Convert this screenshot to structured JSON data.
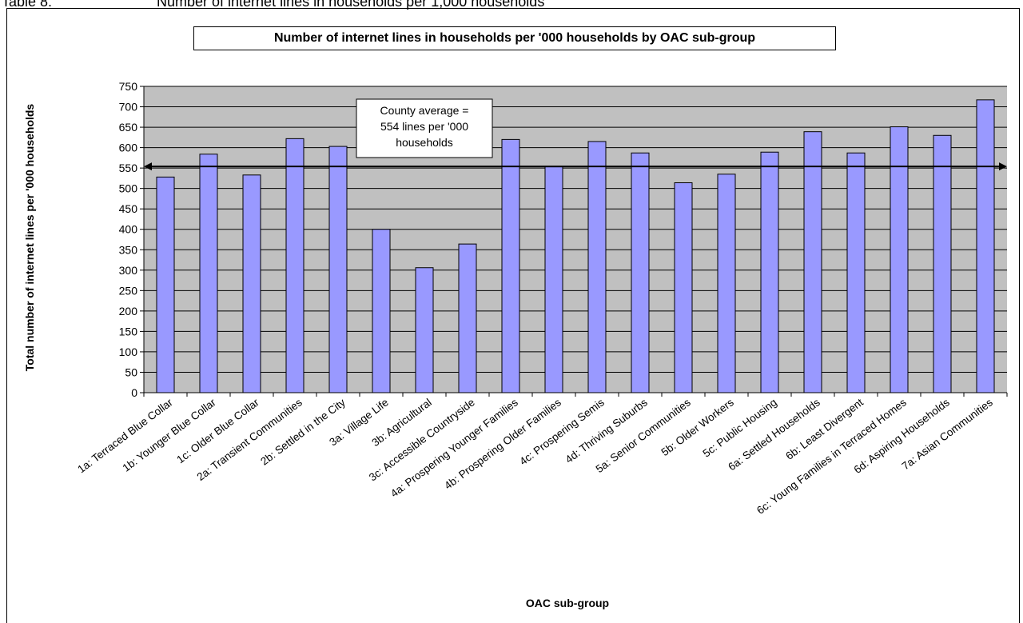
{
  "caption": {
    "number": "Table 8:",
    "text": "Number of internet lines in households per 1,000 households"
  },
  "colors": {
    "plot_background": "#c0c0c0",
    "bar_fill": "#9999ff",
    "bar_stroke": "#000000",
    "gridline": "#000000"
  },
  "chart_data": {
    "type": "bar",
    "title": "Number of internet lines in households per '000 households by OAC sub-group",
    "xlabel": "OAC sub-group",
    "ylabel": "Total number of internet lines per '000 households",
    "ylim": [
      0,
      750
    ],
    "yticks": [
      0,
      50,
      100,
      150,
      200,
      250,
      300,
      350,
      400,
      450,
      500,
      550,
      600,
      650,
      700,
      750
    ],
    "grid": true,
    "categories": [
      "1a: Terraced Blue Collar",
      "1b: Younger Blue Collar",
      "1c: Older Blue Collar",
      "2a: Transient Communities",
      "2b: Settled in the City",
      "3a: Village Life",
      "3b: Agricultural",
      "3c: Accessible Countryside",
      "4a: Prospering Younger Families",
      "4b: Prospering Older Families",
      "4c: Prospering Semis",
      "4d: Thriving Suburbs",
      "5a: Senior Communities",
      "5b: Older Workers",
      "5c: Public Housing",
      "6a: Settled Households",
      "6b: Least Divergent",
      "6c: Young Families in Terraced Homes",
      "6d: Aspiring Households",
      "7a: Asian Communities"
    ],
    "values": [
      528,
      584,
      533,
      622,
      603,
      400,
      306,
      364,
      620,
      553,
      615,
      587,
      514,
      535,
      589,
      639,
      587,
      651,
      630,
      717
    ],
    "reference_line": {
      "value": 554,
      "label_lines": [
        "County average =",
        "554 lines per '000",
        "households"
      ]
    }
  }
}
